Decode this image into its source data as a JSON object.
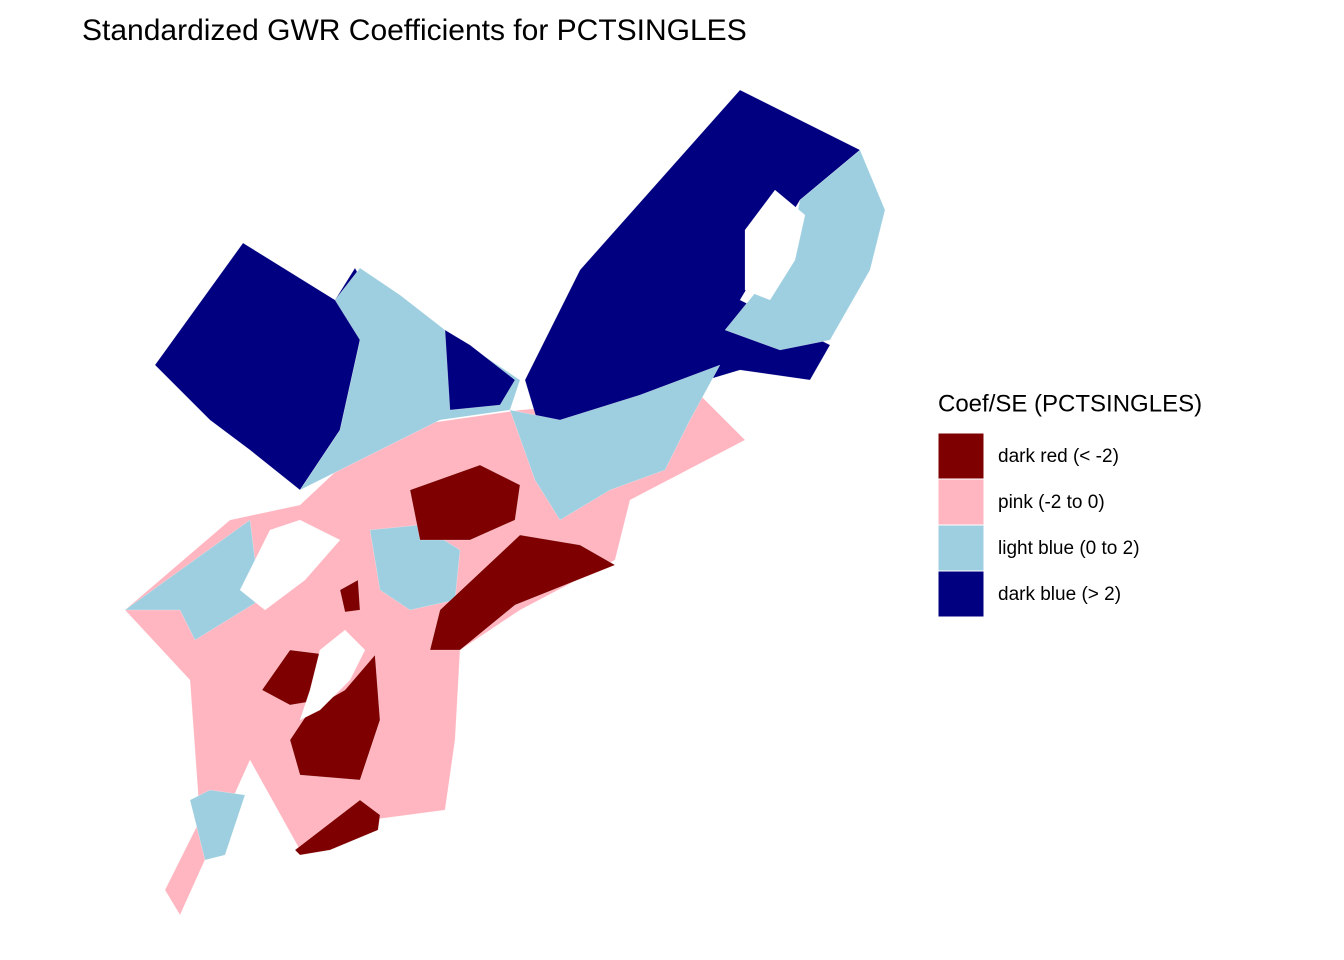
{
  "chart_data": {
    "type": "choropleth",
    "title": "Standardized GWR Coefficients for PCTSINGLES",
    "legend": {
      "title": "Coef/SE (PCTSINGLES)",
      "items": [
        {
          "label": "dark red (< -2)",
          "color": "#7f0000"
        },
        {
          "label": "pink (-2 to 0)",
          "color": "#ffb6c1"
        },
        {
          "label": "light blue (0 to 2)",
          "color": "#9ecfe0"
        },
        {
          "label": "dark blue (> 2)",
          "color": "#000080"
        }
      ]
    }
  }
}
